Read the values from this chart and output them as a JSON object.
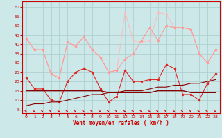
{
  "x": [
    0,
    1,
    2,
    3,
    4,
    5,
    6,
    7,
    8,
    9,
    10,
    11,
    12,
    13,
    14,
    15,
    16,
    17,
    18,
    19,
    20,
    21,
    22,
    23
  ],
  "line_rafales_max": [
    43,
    37,
    37,
    24,
    22,
    41,
    39,
    44,
    37,
    33,
    25,
    26,
    57,
    42,
    41,
    42,
    57,
    56,
    49,
    49,
    48,
    35,
    30,
    37
  ],
  "line_rafales": [
    43,
    37,
    37,
    24,
    22,
    41,
    39,
    44,
    37,
    33,
    25,
    26,
    32,
    35,
    42,
    49,
    42,
    50,
    49,
    49,
    48,
    35,
    30,
    37
  ],
  "line_vent_moyen": [
    22,
    16,
    16,
    10,
    9,
    20,
    25,
    27,
    25,
    16,
    9,
    12,
    26,
    20,
    20,
    21,
    21,
    29,
    27,
    13,
    13,
    10,
    19,
    24
  ],
  "line_trend": [
    7,
    8,
    8,
    9,
    9,
    10,
    11,
    12,
    13,
    13,
    14,
    14,
    15,
    15,
    15,
    16,
    17,
    17,
    18,
    18,
    19,
    19,
    20,
    21
  ],
  "line_flat": [
    15,
    15,
    15,
    15,
    15,
    15,
    15,
    15,
    15,
    15,
    14,
    14,
    14,
    14,
    14,
    14,
    15,
    15,
    15,
    15,
    14,
    14,
    14,
    14
  ],
  "bg_color": "#cce8e8",
  "grid_color": "#aacccc",
  "color_rafales_max": "#ffbbbb",
  "color_rafales": "#ff9999",
  "color_vent_moyen": "#dd2222",
  "color_flat": "#880000",
  "color_trend": "#cc2222",
  "color_arrow": "#cc1111",
  "color_axis_text": "#cc0000",
  "xlabel": "Vent moyen/en rafales ( km/h )",
  "ylim": [
    3,
    63
  ],
  "xlim": [
    -0.5,
    23.5
  ],
  "yticks": [
    5,
    10,
    15,
    20,
    25,
    30,
    35,
    40,
    45,
    50,
    55,
    60
  ],
  "xticks": [
    0,
    1,
    2,
    3,
    4,
    5,
    6,
    7,
    8,
    9,
    10,
    11,
    12,
    13,
    14,
    15,
    16,
    17,
    18,
    19,
    20,
    21,
    22,
    23
  ]
}
